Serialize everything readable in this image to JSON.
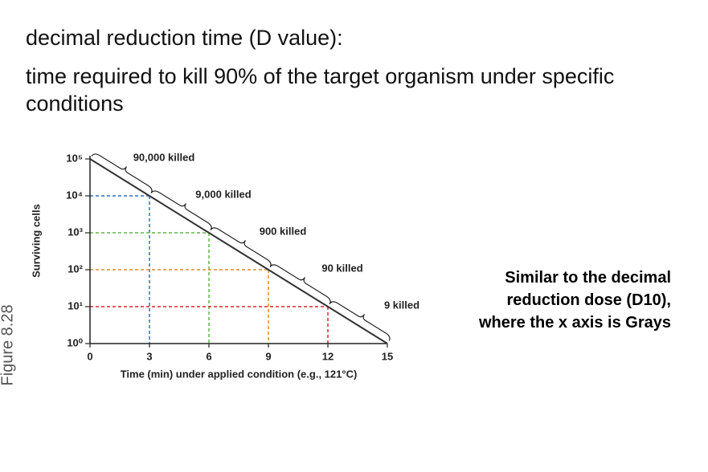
{
  "slide": {
    "heading": "decimal reduction time (D value):",
    "definition": "time required to kill 90% of the target organism under specific conditions",
    "side_note": "Similar to the decimal reduction dose (D10), where the x axis is Grays",
    "figure_label": "Figure 8.28"
  },
  "chart_data": {
    "type": "line",
    "x": [
      0,
      3,
      6,
      9,
      12,
      15
    ],
    "values": [
      100000,
      10000,
      1000,
      100,
      10,
      1
    ],
    "color": "#333333",
    "xlim": [
      0,
      15
    ],
    "xticks": [
      0,
      3,
      6,
      9,
      12,
      15
    ],
    "ylim": [
      1,
      100000
    ],
    "log_y": true,
    "yticks": [
      {
        "value": 1,
        "label": "10⁰"
      },
      {
        "value": 10,
        "label": "10¹"
      },
      {
        "value": 100,
        "label": "10²"
      },
      {
        "value": 1000,
        "label": "10³"
      },
      {
        "value": 10000,
        "label": "10⁴"
      },
      {
        "value": 100000,
        "label": "10⁵"
      }
    ],
    "xlabel": "Time (min) under applied condition (e.g., 121°C)",
    "ylabel": "Surviving cells",
    "guide_colors": [
      "#2b6fc0",
      "#5db843",
      "#e08b2b",
      "#d8262c"
    ],
    "annotations": [
      "90,000 killed",
      "9,000 killed",
      "900 killed",
      "90 killed",
      "9 killed"
    ]
  }
}
